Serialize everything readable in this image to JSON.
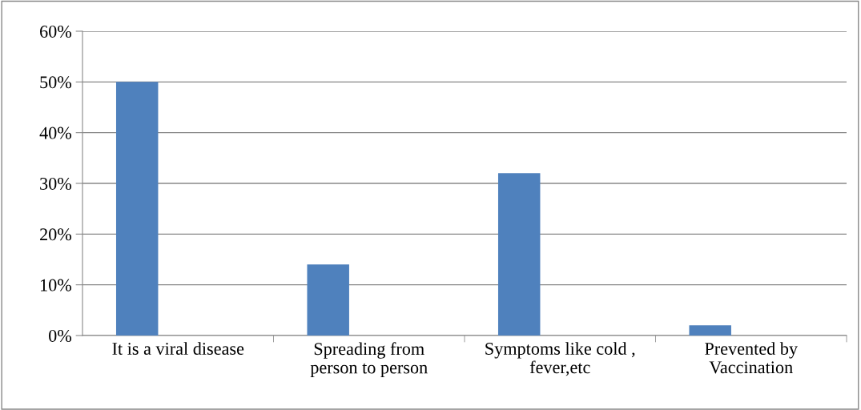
{
  "chart_data": {
    "type": "bar",
    "categories": [
      "It is a viral disease",
      "Spreading from\nperson to person",
      "Symptoms like cold ,\nfever,etc",
      "Prevented by\nVaccination"
    ],
    "values": [
      50,
      14,
      32,
      2
    ],
    "color": "#4f81bd",
    "ylim": [
      0,
      60
    ],
    "yticks": [
      {
        "value": 0,
        "label": "0%"
      },
      {
        "value": 10,
        "label": "10%"
      },
      {
        "value": 20,
        "label": "20%"
      },
      {
        "value": 30,
        "label": "30%"
      },
      {
        "value": 40,
        "label": "40%"
      },
      {
        "value": 50,
        "label": "50%"
      },
      {
        "value": 60,
        "label": "60%"
      }
    ],
    "grid": "y",
    "legend": false
  }
}
